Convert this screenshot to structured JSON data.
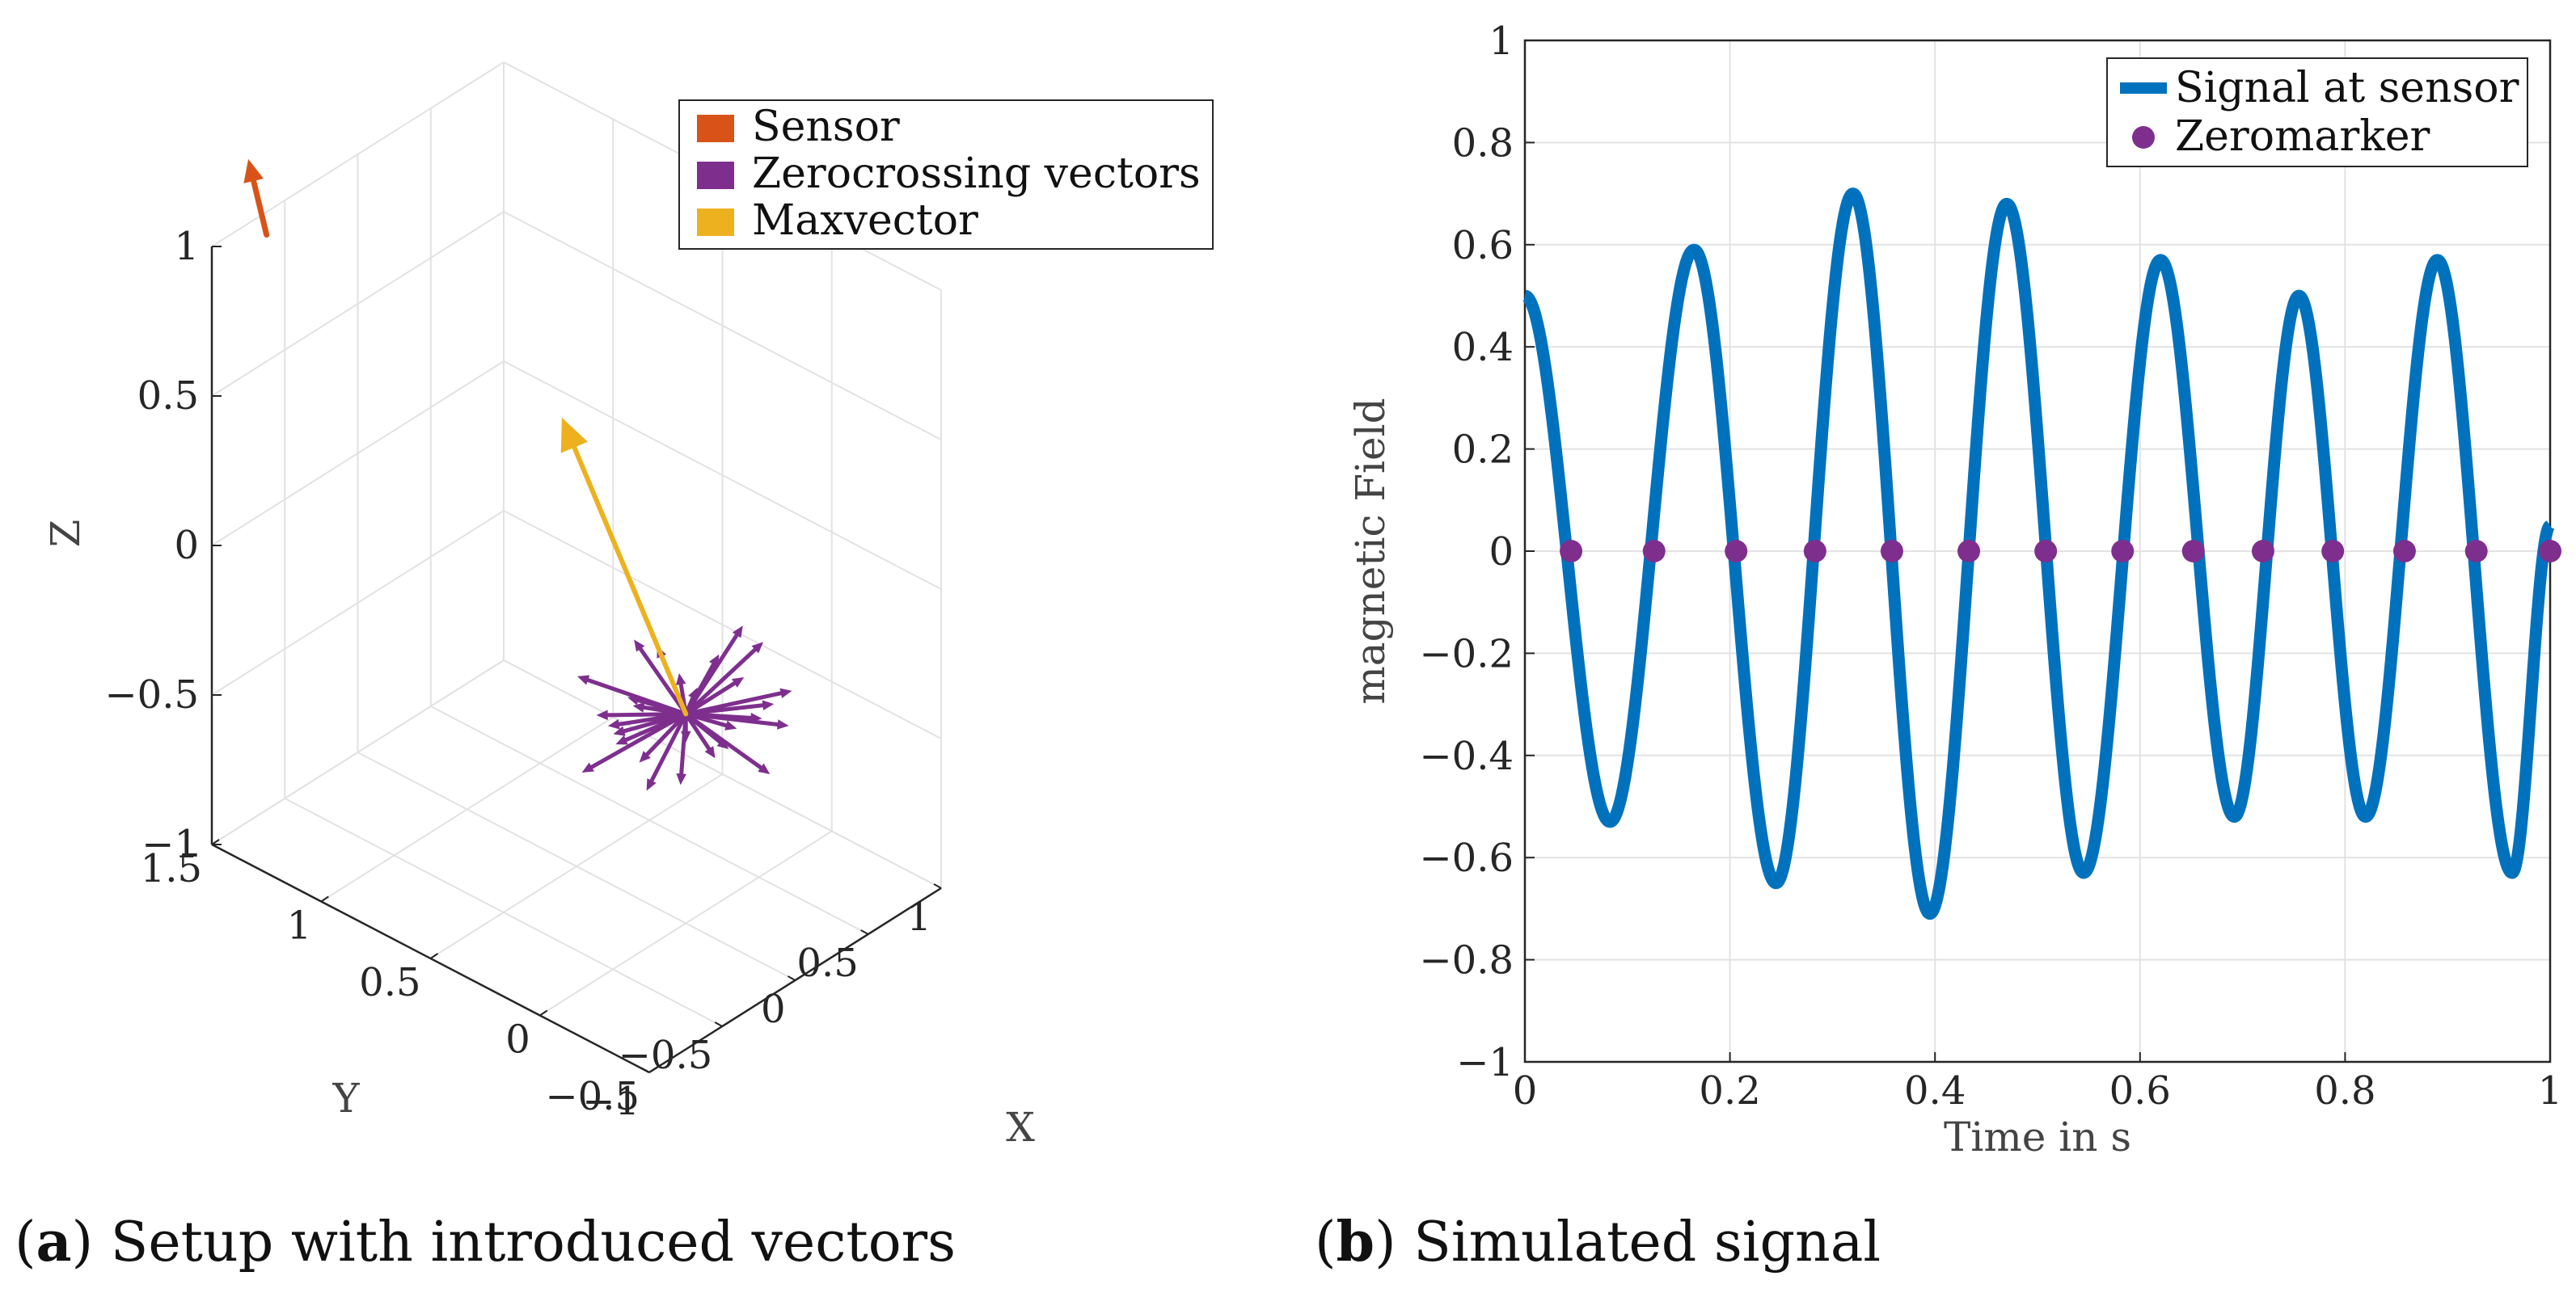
{
  "chart_data": [
    {
      "id": "a",
      "type": "3d-vector",
      "caption_label": "a",
      "caption_text": "Setup with introduced vectors",
      "xlabel": "X",
      "ylabel": "Y",
      "zlabel": "Z",
      "xlim": [
        -1,
        1
      ],
      "ylim": [
        -0.5,
        1.5
      ],
      "zlim": [
        -1,
        1
      ],
      "x_ticks": [
        {
          "value": -1,
          "label": "−1"
        },
        {
          "value": -0.5,
          "label": "−0.5"
        },
        {
          "value": 0,
          "label": "0"
        },
        {
          "value": 0.5,
          "label": "0.5"
        },
        {
          "value": 1,
          "label": "1"
        }
      ],
      "y_ticks": [
        {
          "value": -0.5,
          "label": "−0.5"
        },
        {
          "value": 0,
          "label": "0"
        },
        {
          "value": 0.5,
          "label": "0.5"
        },
        {
          "value": 1,
          "label": "1"
        },
        {
          "value": 1.5,
          "label": "1.5"
        }
      ],
      "z_ticks": [
        {
          "value": -1,
          "label": "−1"
        },
        {
          "value": -0.5,
          "label": "−0.5"
        },
        {
          "value": 0,
          "label": "0"
        },
        {
          "value": 0.5,
          "label": "0.5"
        },
        {
          "value": 1,
          "label": "1"
        }
      ],
      "legend": [
        {
          "label": "Sensor",
          "color": "#D95319"
        },
        {
          "label": "Zerocrossing vectors",
          "color": "#7E2F8E"
        },
        {
          "label": "Maxvector",
          "color": "#EDB120"
        }
      ],
      "legend_position": "top-right",
      "sensor_vector": {
        "from": [
          -0.85,
          1.35,
          1.05
        ],
        "to": [
          -0.9,
          1.4,
          1.3
        ],
        "color": "#D95319"
      },
      "max_vector": {
        "from": [
          0,
          0,
          -0.3
        ],
        "to": [
          -0.4,
          0.3,
          0.7
        ],
        "color": "#EDB120"
      },
      "zero_vectors": {
        "origin": [
          0,
          0,
          -0.3
        ],
        "count": 28,
        "reach_x": 0.55,
        "reach_y": 0.35,
        "reach_z": 0.12,
        "color": "#7E2F8E"
      }
    },
    {
      "id": "b",
      "type": "line",
      "caption_label": "b",
      "caption_text": "Simulated signal",
      "xlabel": "Time in s",
      "ylabel": "magnetic Field",
      "xlim": [
        0,
        1
      ],
      "ylim": [
        -1,
        1
      ],
      "grid": true,
      "x_ticks": [
        {
          "value": 0,
          "label": "0"
        },
        {
          "value": 0.2,
          "label": "0.2"
        },
        {
          "value": 0.4,
          "label": "0.4"
        },
        {
          "value": 0.6,
          "label": "0.6"
        },
        {
          "value": 0.8,
          "label": "0.8"
        },
        {
          "value": 1,
          "label": "1"
        }
      ],
      "y_ticks": [
        {
          "value": -1,
          "label": "−1"
        },
        {
          "value": -0.8,
          "label": "−0.8"
        },
        {
          "value": -0.6,
          "label": "−0.6"
        },
        {
          "value": -0.4,
          "label": "−0.4"
        },
        {
          "value": -0.2,
          "label": "−0.2"
        },
        {
          "value": 0,
          "label": "0"
        },
        {
          "value": 0.2,
          "label": "0.2"
        },
        {
          "value": 0.4,
          "label": "0.4"
        },
        {
          "value": 0.6,
          "label": "0.6"
        },
        {
          "value": 0.8,
          "label": "0.8"
        },
        {
          "value": 1,
          "label": "1"
        }
      ],
      "legend_position": "top-right",
      "series": [
        {
          "name": "Signal at sensor",
          "kind": "line",
          "color": "#0072BD",
          "peaks": [
            {
              "t": 0.0,
              "v": 0.5
            },
            {
              "t": 0.083,
              "v": -0.53
            },
            {
              "t": 0.165,
              "v": 0.59
            },
            {
              "t": 0.245,
              "v": -0.65
            },
            {
              "t": 0.32,
              "v": 0.7
            },
            {
              "t": 0.395,
              "v": -0.71
            },
            {
              "t": 0.47,
              "v": 0.68
            },
            {
              "t": 0.545,
              "v": -0.63
            },
            {
              "t": 0.62,
              "v": 0.57
            },
            {
              "t": 0.692,
              "v": -0.52
            },
            {
              "t": 0.755,
              "v": 0.5
            },
            {
              "t": 0.82,
              "v": -0.52
            },
            {
              "t": 0.89,
              "v": 0.57
            },
            {
              "t": 0.963,
              "v": -0.63
            },
            {
              "t": 1.0,
              "v": 0.05
            }
          ]
        },
        {
          "name": "Zeromarker",
          "kind": "marker",
          "color": "#7E2F8E",
          "x": [
            0.045,
            0.126,
            0.206,
            0.283,
            0.358,
            0.433,
            0.508,
            0.583,
            0.652,
            0.72,
            0.788,
            0.858,
            0.928,
            1.0
          ],
          "y": [
            0,
            0,
            0,
            0,
            0,
            0,
            0,
            0,
            0,
            0,
            0,
            0,
            0,
            0
          ]
        }
      ]
    }
  ]
}
